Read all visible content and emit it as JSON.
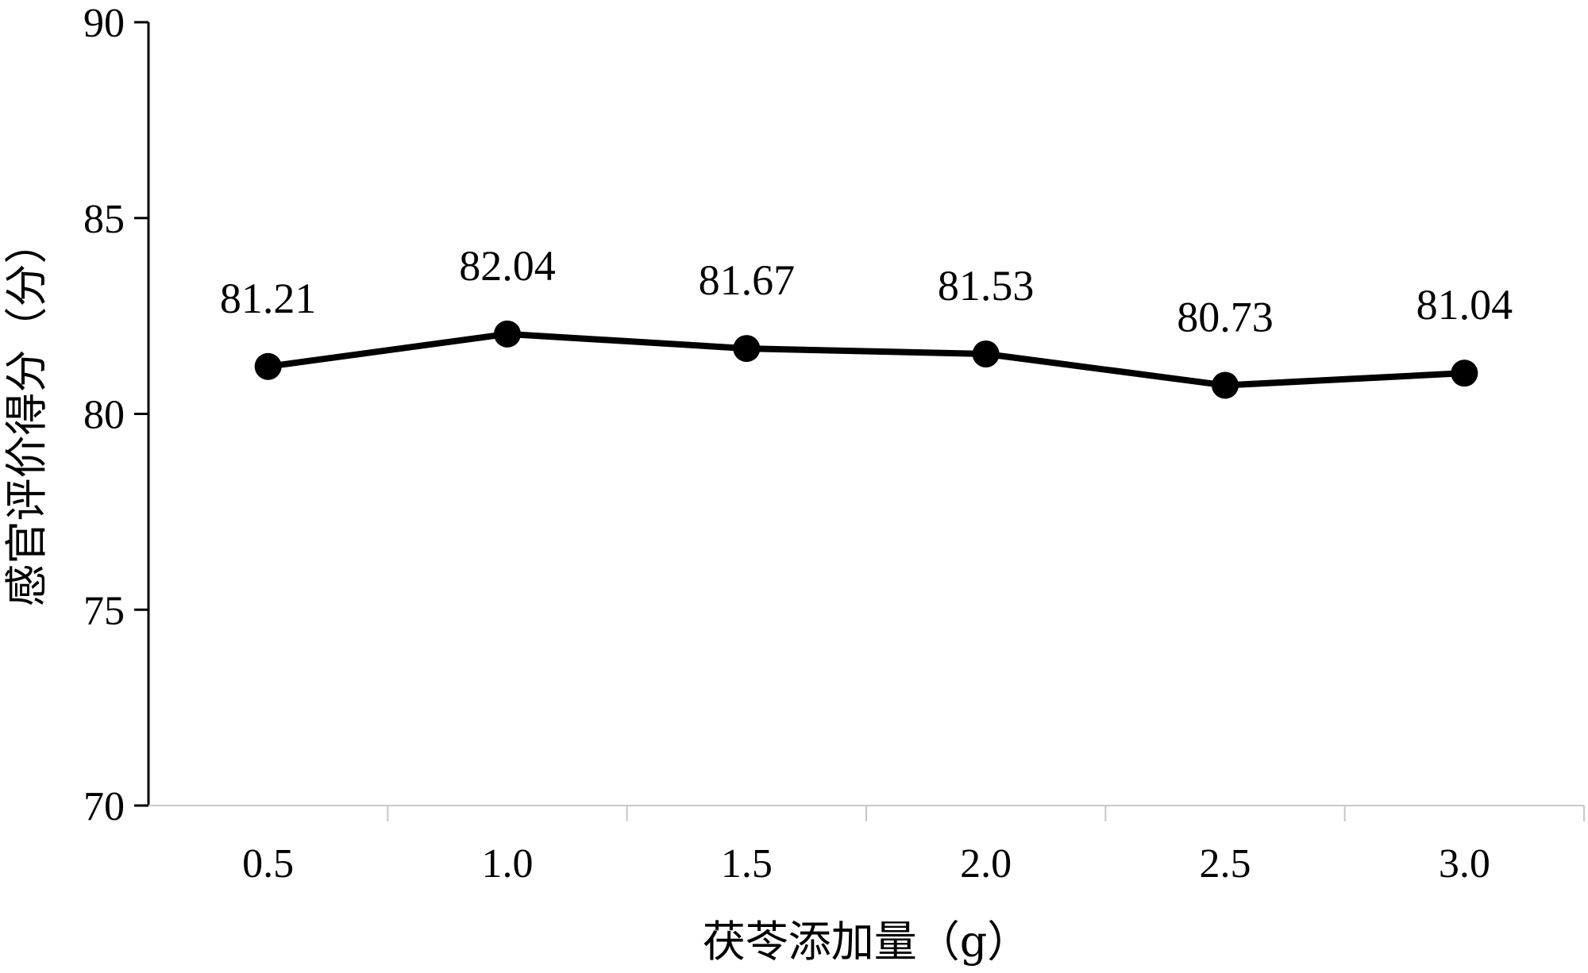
{
  "chart_data": {
    "type": "line",
    "categories": [
      "0.5",
      "1.0",
      "1.5",
      "2.0",
      "2.5",
      "3.0"
    ],
    "series": [
      {
        "values": [
          81.21,
          82.04,
          81.67,
          81.53,
          80.73,
          81.04
        ]
      }
    ],
    "data_labels": [
      "81.21",
      "82.04",
      "81.67",
      "81.53",
      "80.73",
      "81.04"
    ],
    "xlabel": "茯苓添加量（g）",
    "ylabel": "感官评价得分（分）",
    "ylim": [
      70,
      90
    ],
    "yticks": [
      "70",
      "75",
      "80",
      "85",
      "90"
    ],
    "grid": false,
    "legend": "none",
    "line_color": "#000000",
    "marker": "filled-circle"
  }
}
